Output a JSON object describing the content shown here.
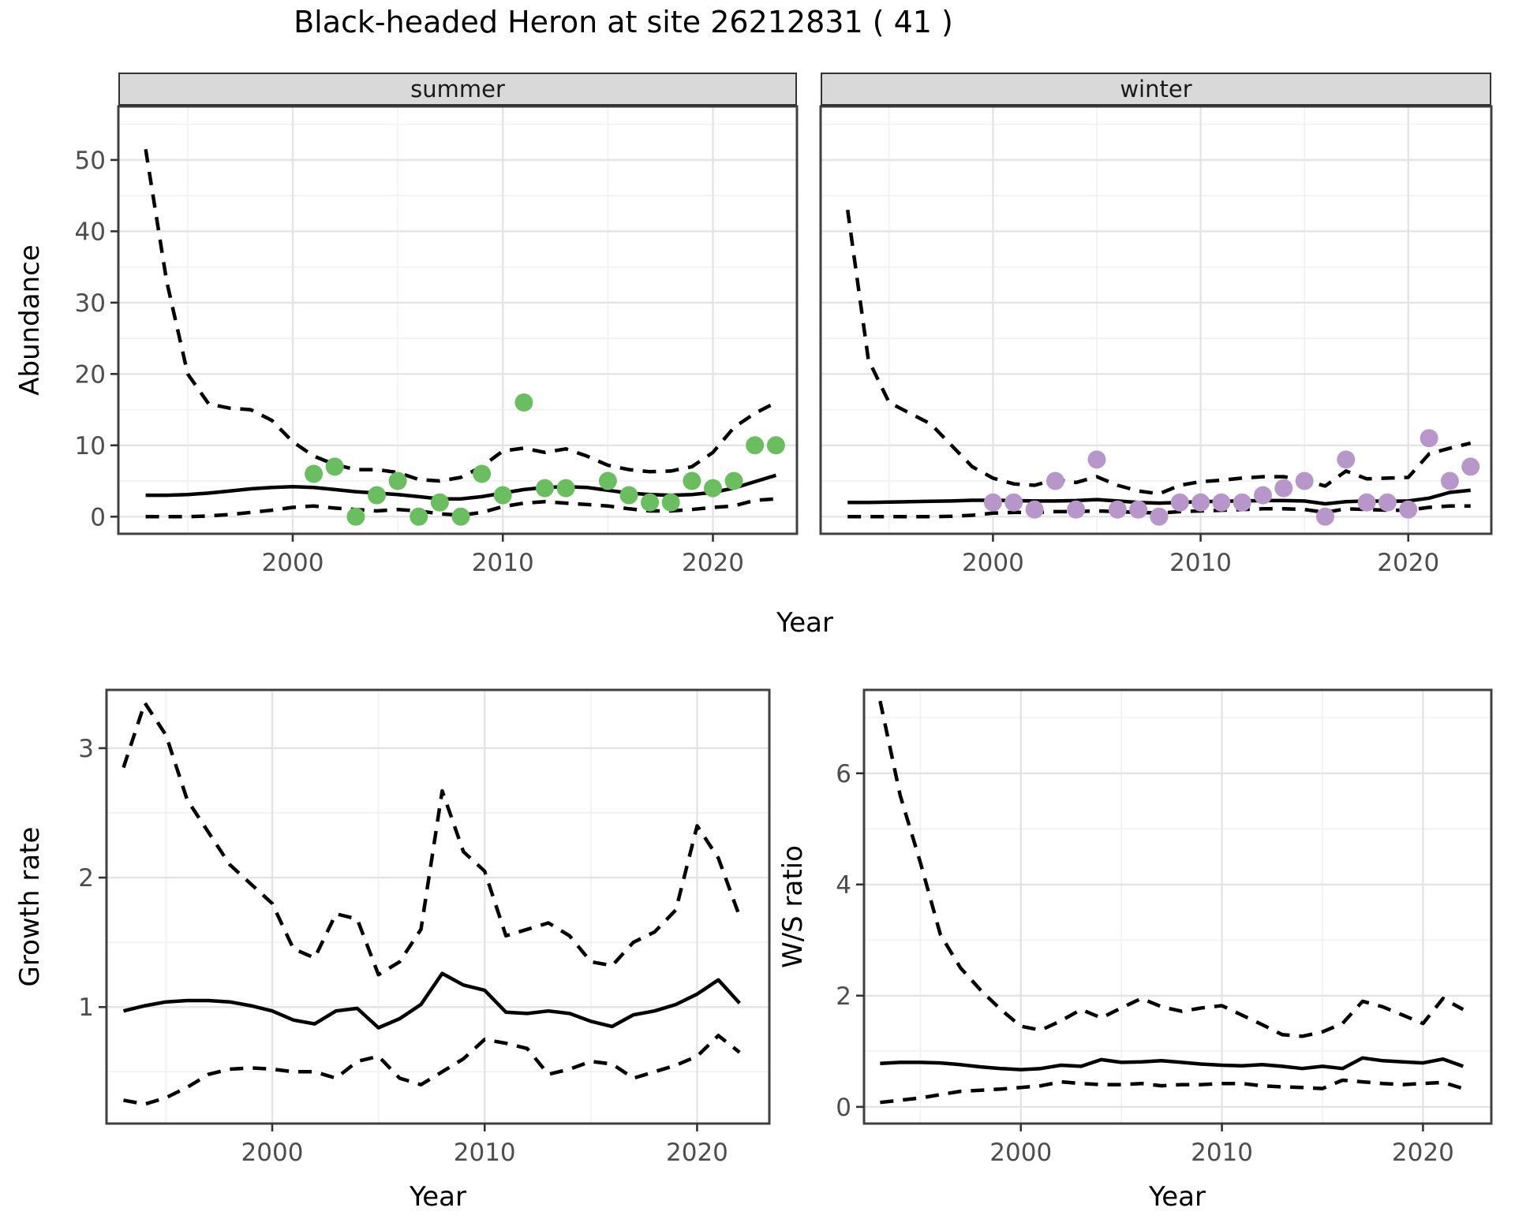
{
  "title": "Black-headed Heron at site 26212831 ( 41 )",
  "facets": {
    "summer_label": "summer",
    "winter_label": "winter"
  },
  "axis_titles": {
    "abundance": "Abundance",
    "year_top": "Year",
    "growth_rate": "Growth rate",
    "ws_ratio": "W/S ratio",
    "year_bottom_left": "Year",
    "year_bottom_right": "Year"
  },
  "colors": {
    "summer_point": "#6ABE60",
    "winter_point": "#B796C9",
    "line": "#000000",
    "grid_major": "#e4e4e4",
    "grid_minor": "#f1f1f1",
    "panel_border": "#404040",
    "tick_mark": "#333333",
    "tick_label": "#4d4d4d",
    "strip_bg": "#d9d9d9"
  },
  "chart_data": [
    {
      "name": "abundance-summer",
      "type": "line+scatter",
      "facet": "summer",
      "xlabel": "Year",
      "ylabel": "Abundance",
      "xlim": [
        1991.7,
        2024.0
      ],
      "ylim": [
        -2.4,
        57.5
      ],
      "xticks": [
        2000,
        2010,
        2020
      ],
      "xticks_minor": [
        1995,
        2005,
        2015
      ],
      "yticks": [
        0,
        10,
        20,
        30,
        40,
        50
      ],
      "yticks_minor": [
        5,
        15,
        25,
        35,
        45,
        55
      ],
      "show_ytick_labels": true,
      "series": [
        {
          "name": "upper-ci",
          "style": "dashed",
          "x": [
            1993,
            1994,
            1995,
            1996,
            1997,
            1998,
            1999,
            2000,
            2001,
            2002,
            2003,
            2004,
            2005,
            2006,
            2007,
            2008,
            2009,
            2010,
            2011,
            2012,
            2013,
            2014,
            2015,
            2016,
            2017,
            2018,
            2019,
            2020,
            2021,
            2022,
            2023
          ],
          "y": [
            51.5,
            33,
            20,
            15.8,
            15.2,
            15,
            13.5,
            10.5,
            8.5,
            7.3,
            6.6,
            6.6,
            6.2,
            5.2,
            5,
            5.5,
            7,
            9.2,
            9.6,
            9,
            9.5,
            8.5,
            7.2,
            6.6,
            6.3,
            6.4,
            7,
            9,
            12.5,
            14.5,
            16
          ]
        },
        {
          "name": "fit",
          "style": "solid",
          "x": [
            1993,
            1994,
            1995,
            1996,
            1997,
            1998,
            1999,
            2000,
            2001,
            2002,
            2003,
            2004,
            2005,
            2006,
            2007,
            2008,
            2009,
            2010,
            2011,
            2012,
            2013,
            2014,
            2015,
            2016,
            2017,
            2018,
            2019,
            2020,
            2021,
            2022,
            2023
          ],
          "y": [
            3,
            3,
            3.1,
            3.3,
            3.6,
            3.9,
            4.1,
            4.2,
            4.1,
            3.8,
            3.5,
            3.3,
            3.1,
            2.8,
            2.5,
            2.5,
            2.8,
            3.3,
            3.8,
            4.1,
            4.2,
            4.1,
            3.7,
            3.3,
            3.1,
            3,
            3.1,
            3.4,
            4,
            4.9,
            5.8
          ]
        },
        {
          "name": "lower-ci",
          "style": "dashed",
          "x": [
            1993,
            1994,
            1995,
            1996,
            1997,
            1998,
            1999,
            2000,
            2001,
            2002,
            2003,
            2004,
            2005,
            2006,
            2007,
            2008,
            2009,
            2010,
            2011,
            2012,
            2013,
            2014,
            2015,
            2016,
            2017,
            2018,
            2019,
            2020,
            2021,
            2022,
            2023
          ],
          "y": [
            0,
            0,
            0,
            0.1,
            0.3,
            0.6,
            0.9,
            1.3,
            1.5,
            1.2,
            1,
            0.8,
            1,
            0.8,
            0.4,
            0.2,
            0.6,
            1.4,
            1.9,
            2.1,
            1.9,
            1.7,
            1.5,
            1.1,
            0.8,
            0.8,
            1,
            1.3,
            1.5,
            2.3,
            2.5
          ]
        }
      ],
      "points": {
        "color_key": "summer_point",
        "x": [
          2001,
          2002,
          2003,
          2004,
          2005,
          2006,
          2007,
          2008,
          2009,
          2010,
          2011,
          2012,
          2013,
          2015,
          2016,
          2017,
          2018,
          2019,
          2020,
          2021,
          2022,
          2023
        ],
        "y": [
          6,
          7,
          0,
          3,
          5,
          0,
          2,
          0,
          6,
          3,
          16,
          4,
          4,
          5,
          3,
          2,
          2,
          5,
          4,
          5,
          10,
          10
        ]
      }
    },
    {
      "name": "abundance-winter",
      "type": "line+scatter",
      "facet": "winter",
      "xlabel": "Year",
      "ylabel": "Abundance",
      "xlim": [
        1991.7,
        2024.0
      ],
      "ylim": [
        -2.4,
        57.5
      ],
      "xticks": [
        2000,
        2010,
        2020
      ],
      "xticks_minor": [
        1995,
        2005,
        2015
      ],
      "yticks": [
        0,
        10,
        20,
        30,
        40,
        50
      ],
      "yticks_minor": [
        5,
        15,
        25,
        35,
        45,
        55
      ],
      "show_ytick_labels": false,
      "series": [
        {
          "name": "upper-ci",
          "style": "dashed",
          "x": [
            1993,
            1994,
            1995,
            1996,
            1997,
            1998,
            1999,
            2000,
            2001,
            2002,
            2003,
            2004,
            2005,
            2006,
            2007,
            2008,
            2009,
            2010,
            2011,
            2012,
            2013,
            2014,
            2015,
            2016,
            2017,
            2018,
            2019,
            2020,
            2021,
            2022,
            2023
          ],
          "y": [
            43,
            22,
            16,
            14.5,
            13,
            10,
            7,
            5.4,
            4.6,
            4.4,
            5.2,
            4.8,
            5.6,
            4.4,
            3.6,
            3.2,
            4.4,
            4.9,
            5.1,
            5.4,
            5.6,
            5.6,
            5.1,
            4.3,
            6.4,
            5.3,
            5.4,
            5.5,
            8.8,
            9.6,
            10.3
          ]
        },
        {
          "name": "fit",
          "style": "solid",
          "x": [
            1993,
            1994,
            1995,
            1996,
            1997,
            1998,
            1999,
            2000,
            2001,
            2002,
            2003,
            2004,
            2005,
            2006,
            2007,
            2008,
            2009,
            2010,
            2011,
            2012,
            2013,
            2014,
            2015,
            2016,
            2017,
            2018,
            2019,
            2020,
            2021,
            2022,
            2023
          ],
          "y": [
            2,
            2,
            2.05,
            2.1,
            2.15,
            2.2,
            2.3,
            2.3,
            2.25,
            2.2,
            2.2,
            2.25,
            2.4,
            2.2,
            2,
            1.9,
            2,
            2.1,
            2.15,
            2.2,
            2.25,
            2.25,
            2.2,
            1.8,
            2.1,
            2.2,
            2.15,
            2.2,
            2.6,
            3.4,
            3.7
          ]
        },
        {
          "name": "lower-ci",
          "style": "dashed",
          "x": [
            1993,
            1994,
            1995,
            1996,
            1997,
            1998,
            1999,
            2000,
            2001,
            2002,
            2003,
            2004,
            2005,
            2006,
            2007,
            2008,
            2009,
            2010,
            2011,
            2012,
            2013,
            2014,
            2015,
            2016,
            2017,
            2018,
            2019,
            2020,
            2021,
            2022,
            2023
          ],
          "y": [
            0,
            0,
            0,
            0,
            0,
            0.05,
            0.2,
            0.5,
            0.6,
            0.6,
            0.7,
            0.7,
            0.8,
            0.7,
            0.6,
            0.5,
            0.7,
            0.8,
            0.9,
            1,
            1.1,
            1.1,
            1,
            0.6,
            1.1,
            1,
            0.9,
            0.9,
            1.3,
            1.5,
            1.5
          ]
        }
      ],
      "points": {
        "color_key": "winter_point",
        "x": [
          2000,
          2001,
          2002,
          2003,
          2004,
          2005,
          2006,
          2007,
          2008,
          2009,
          2010,
          2011,
          2012,
          2013,
          2014,
          2015,
          2016,
          2017,
          2018,
          2019,
          2020,
          2021,
          2022,
          2023
        ],
        "y": [
          2,
          2,
          1,
          5,
          1,
          8,
          1,
          1,
          0,
          2,
          2,
          2,
          2,
          3,
          4,
          5,
          0,
          8,
          2,
          2,
          1,
          11,
          5,
          7
        ]
      }
    },
    {
      "name": "growth-rate",
      "type": "line",
      "xlabel": "Year",
      "ylabel": "Growth rate",
      "xlim": [
        1992.2,
        2023.4
      ],
      "ylim": [
        0.1,
        3.45
      ],
      "xticks": [
        2000,
        2010,
        2020
      ],
      "xticks_minor": [
        1995,
        2005,
        2015
      ],
      "yticks": [
        1,
        2,
        3
      ],
      "yticks_minor": [
        0.5,
        1.5,
        2.5
      ],
      "show_ytick_labels": true,
      "series": [
        {
          "name": "upper-ci",
          "style": "dashed",
          "x": [
            1993,
            1994,
            1995,
            1996,
            1997,
            1998,
            1999,
            2000,
            2001,
            2002,
            2003,
            2004,
            2005,
            2006,
            2007,
            2008,
            2009,
            2010,
            2011,
            2012,
            2013,
            2014,
            2015,
            2016,
            2017,
            2018,
            2019,
            2020,
            2021,
            2022
          ],
          "y": [
            2.85,
            3.35,
            3.1,
            2.6,
            2.35,
            2.1,
            1.95,
            1.8,
            1.45,
            1.38,
            1.72,
            1.68,
            1.25,
            1.35,
            1.6,
            2.67,
            2.2,
            2.05,
            1.55,
            1.6,
            1.65,
            1.55,
            1.35,
            1.32,
            1.5,
            1.58,
            1.75,
            2.4,
            2.15,
            1.7
          ]
        },
        {
          "name": "fit",
          "style": "solid",
          "x": [
            1993,
            1994,
            1995,
            1996,
            1997,
            1998,
            1999,
            2000,
            2001,
            2002,
            2003,
            2004,
            2005,
            2006,
            2007,
            2008,
            2009,
            2010,
            2011,
            2012,
            2013,
            2014,
            2015,
            2016,
            2017,
            2018,
            2019,
            2020,
            2021,
            2022
          ],
          "y": [
            0.97,
            1.01,
            1.04,
            1.05,
            1.05,
            1.04,
            1.01,
            0.97,
            0.9,
            0.87,
            0.97,
            0.99,
            0.84,
            0.91,
            1.02,
            1.26,
            1.17,
            1.13,
            0.96,
            0.95,
            0.97,
            0.95,
            0.89,
            0.85,
            0.94,
            0.97,
            1.02,
            1.1,
            1.21,
            1.03
          ]
        },
        {
          "name": "lower-ci",
          "style": "dashed",
          "x": [
            1993,
            1994,
            1995,
            1996,
            1997,
            1998,
            1999,
            2000,
            2001,
            2002,
            2003,
            2004,
            2005,
            2006,
            2007,
            2008,
            2009,
            2010,
            2011,
            2012,
            2013,
            2014,
            2015,
            2016,
            2017,
            2018,
            2019,
            2020,
            2021,
            2022
          ],
          "y": [
            0.28,
            0.25,
            0.3,
            0.38,
            0.48,
            0.52,
            0.53,
            0.52,
            0.5,
            0.5,
            0.45,
            0.58,
            0.62,
            0.45,
            0.4,
            0.5,
            0.6,
            0.75,
            0.72,
            0.68,
            0.48,
            0.52,
            0.58,
            0.56,
            0.45,
            0.5,
            0.55,
            0.62,
            0.78,
            0.65
          ]
        }
      ]
    },
    {
      "name": "ws-ratio",
      "type": "line",
      "xlabel": "Year",
      "ylabel": "W/S ratio",
      "xlim": [
        1992.2,
        2023.4
      ],
      "ylim": [
        -0.3,
        7.5
      ],
      "xticks": [
        2000,
        2010,
        2020
      ],
      "xticks_minor": [
        1995,
        2005,
        2015
      ],
      "yticks": [
        0,
        2,
        4,
        6
      ],
      "yticks_minor": [
        1,
        3,
        5,
        7
      ],
      "show_ytick_labels": true,
      "series": [
        {
          "name": "upper-ci",
          "style": "dashed",
          "x": [
            1993,
            1994,
            1995,
            1996,
            1997,
            1998,
            1999,
            2000,
            2001,
            2002,
            2003,
            2004,
            2005,
            2006,
            2007,
            2008,
            2009,
            2010,
            2011,
            2012,
            2013,
            2014,
            2015,
            2016,
            2017,
            2018,
            2019,
            2020,
            2021,
            2022
          ],
          "y": [
            7.3,
            5.6,
            4.4,
            3.1,
            2.5,
            2.1,
            1.75,
            1.45,
            1.38,
            1.55,
            1.75,
            1.6,
            1.78,
            1.95,
            1.8,
            1.72,
            1.78,
            1.82,
            1.65,
            1.48,
            1.3,
            1.27,
            1.35,
            1.5,
            1.9,
            1.8,
            1.65,
            1.5,
            1.95,
            1.75
          ]
        },
        {
          "name": "fit",
          "style": "solid",
          "x": [
            1993,
            1994,
            1995,
            1996,
            1997,
            1998,
            1999,
            2000,
            2001,
            2002,
            2003,
            2004,
            2005,
            2006,
            2007,
            2008,
            2009,
            2010,
            2011,
            2012,
            2013,
            2014,
            2015,
            2016,
            2017,
            2018,
            2019,
            2020,
            2021,
            2022
          ],
          "y": [
            0.78,
            0.8,
            0.8,
            0.79,
            0.76,
            0.72,
            0.69,
            0.67,
            0.69,
            0.75,
            0.73,
            0.85,
            0.8,
            0.81,
            0.83,
            0.8,
            0.77,
            0.75,
            0.74,
            0.76,
            0.73,
            0.69,
            0.73,
            0.69,
            0.88,
            0.83,
            0.81,
            0.79,
            0.86,
            0.73
          ]
        },
        {
          "name": "lower-ci",
          "style": "dashed",
          "x": [
            1993,
            1994,
            1995,
            1996,
            1997,
            1998,
            1999,
            2000,
            2001,
            2002,
            2003,
            2004,
            2005,
            2006,
            2007,
            2008,
            2009,
            2010,
            2011,
            2012,
            2013,
            2014,
            2015,
            2016,
            2017,
            2018,
            2019,
            2020,
            2021,
            2022
          ],
          "y": [
            0.08,
            0.12,
            0.16,
            0.22,
            0.28,
            0.3,
            0.32,
            0.35,
            0.38,
            0.45,
            0.42,
            0.4,
            0.4,
            0.42,
            0.38,
            0.4,
            0.4,
            0.42,
            0.42,
            0.38,
            0.36,
            0.35,
            0.33,
            0.48,
            0.45,
            0.42,
            0.4,
            0.42,
            0.44,
            0.33
          ]
        }
      ]
    }
  ]
}
